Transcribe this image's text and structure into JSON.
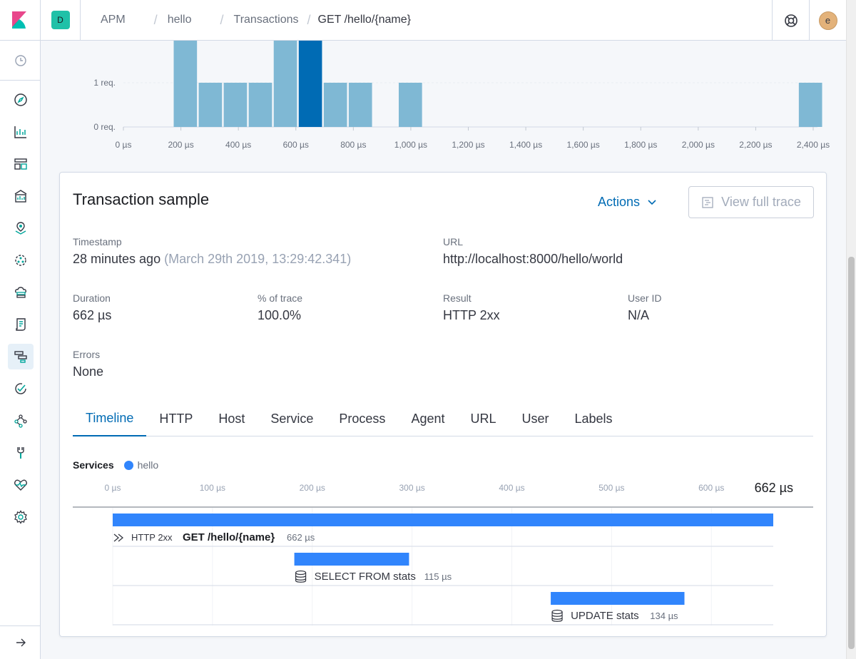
{
  "header": {
    "space_initial": "D",
    "breadcrumbs": [
      "APM",
      "hello",
      "Transactions",
      "GET /hello/{name}"
    ],
    "user_initial": "e"
  },
  "sidebar": {
    "icons": [
      "clock-icon",
      "compass-icon",
      "visualize-icon",
      "dashboard-icon",
      "canvas-icon",
      "maps-icon",
      "ml-icon",
      "infrastructure-icon",
      "logs-icon",
      "apm-icon",
      "uptime-icon",
      "graph-icon",
      "dev-tools-icon",
      "monitoring-icon",
      "settings-icon"
    ],
    "active_icon": "apm-icon"
  },
  "histogram": {
    "chart_data": {
      "type": "bar",
      "y_ticks": [
        "0 req.",
        "1 req."
      ],
      "x_ticks": [
        "0 µs",
        "200 µs",
        "400 µs",
        "600 µs",
        "800 µs",
        "1,000 µs",
        "1,200 µs",
        "1,400 µs",
        "1,600 µs",
        "1,800 µs",
        "2,000 µs",
        "2,200 µs",
        "2,400 µs"
      ],
      "xlim": [
        0,
        2400
      ],
      "ylim": [
        0,
        2
      ],
      "bar_width_us": 86,
      "bars": [
        {
          "x": 175,
          "value": 2,
          "selected": false
        },
        {
          "x": 262,
          "value": 1,
          "selected": false
        },
        {
          "x": 349,
          "value": 1,
          "selected": false
        },
        {
          "x": 436,
          "value": 1,
          "selected": false
        },
        {
          "x": 523,
          "value": 2,
          "selected": false
        },
        {
          "x": 610,
          "value": 2,
          "selected": true
        },
        {
          "x": 697,
          "value": 1,
          "selected": false
        },
        {
          "x": 784,
          "value": 1,
          "selected": false
        },
        {
          "x": 958,
          "value": 1,
          "selected": false
        },
        {
          "x": 2350,
          "value": 1,
          "selected": false
        }
      ],
      "colors": {
        "bar": "#7fb8d4",
        "selected": "#006bb4"
      }
    }
  },
  "sample": {
    "title": "Transaction sample",
    "actions_label": "Actions",
    "view_trace_label": "View full trace",
    "fields": {
      "timestamp": {
        "label": "Timestamp",
        "value": "28 minutes ago",
        "sub": "(March 29th 2019, 13:29:42.341)"
      },
      "url": {
        "label": "URL",
        "value": "http://localhost:8000/hello/world"
      },
      "duration": {
        "label": "Duration",
        "value": "662 µs"
      },
      "percent": {
        "label": "% of trace",
        "value": "100.0%"
      },
      "result": {
        "label": "Result",
        "value": "HTTP 2xx"
      },
      "user_id": {
        "label": "User ID",
        "value": "N/A"
      },
      "errors": {
        "label": "Errors",
        "value": "None"
      }
    },
    "tabs": [
      "Timeline",
      "HTTP",
      "Host",
      "Service",
      "Process",
      "Agent",
      "URL",
      "User",
      "Labels"
    ],
    "active_tab": "Timeline"
  },
  "timeline": {
    "services_label": "Services",
    "service_name": "hello",
    "service_color": "#3185fc",
    "total_label": "662 µs",
    "chart_data": {
      "type": "bar",
      "x_ticks": [
        "0 µs",
        "100 µs",
        "200 µs",
        "300 µs",
        "400 µs",
        "500 µs",
        "600 µs"
      ],
      "xlim": [
        0,
        662
      ],
      "spans": [
        {
          "kind": "transaction",
          "prefix": "HTTP 2xx",
          "name": "GET /hello/{name}",
          "duration_label": "662 µs",
          "start": 0,
          "duration": 662
        },
        {
          "kind": "db",
          "prefix": "",
          "name": "SELECT FROM stats",
          "duration_label": "115 µs",
          "start": 182,
          "duration": 115
        },
        {
          "kind": "db",
          "prefix": "",
          "name": "UPDATE stats",
          "duration_label": "134 µs",
          "start": 439,
          "duration": 134
        }
      ],
      "bar_color": "#3185fc"
    }
  }
}
